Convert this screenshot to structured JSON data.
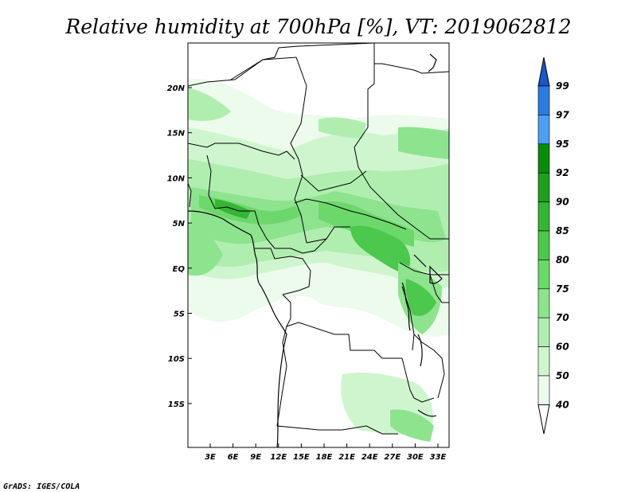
{
  "title": "Relative humidity at 700hPa [%], VT: 2019062812",
  "credit": "GrADS: IGES/COLA",
  "map": {
    "lat_labels": [
      "20N",
      "15N",
      "10N",
      "5N",
      "EQ",
      "5S",
      "10S",
      "15S"
    ],
    "lon_labels": [
      "3E",
      "6E",
      "9E",
      "12E",
      "15E",
      "18E",
      "21E",
      "24E",
      "27E",
      "30E",
      "33E"
    ]
  },
  "colorbar": {
    "labels": [
      "99",
      "97",
      "95",
      "92",
      "90",
      "85",
      "80",
      "75",
      "70",
      "60",
      "50",
      "40"
    ],
    "colors": [
      "#1a57c8",
      "#2b7be0",
      "#4d9ff0",
      "#0a8c0a",
      "#1ea01e",
      "#35b435",
      "#4cc84c",
      "#6cd86c",
      "#8ee38e",
      "#b0eeb0",
      "#cff5cf",
      "#ecfbec",
      "#ffffff"
    ]
  }
}
